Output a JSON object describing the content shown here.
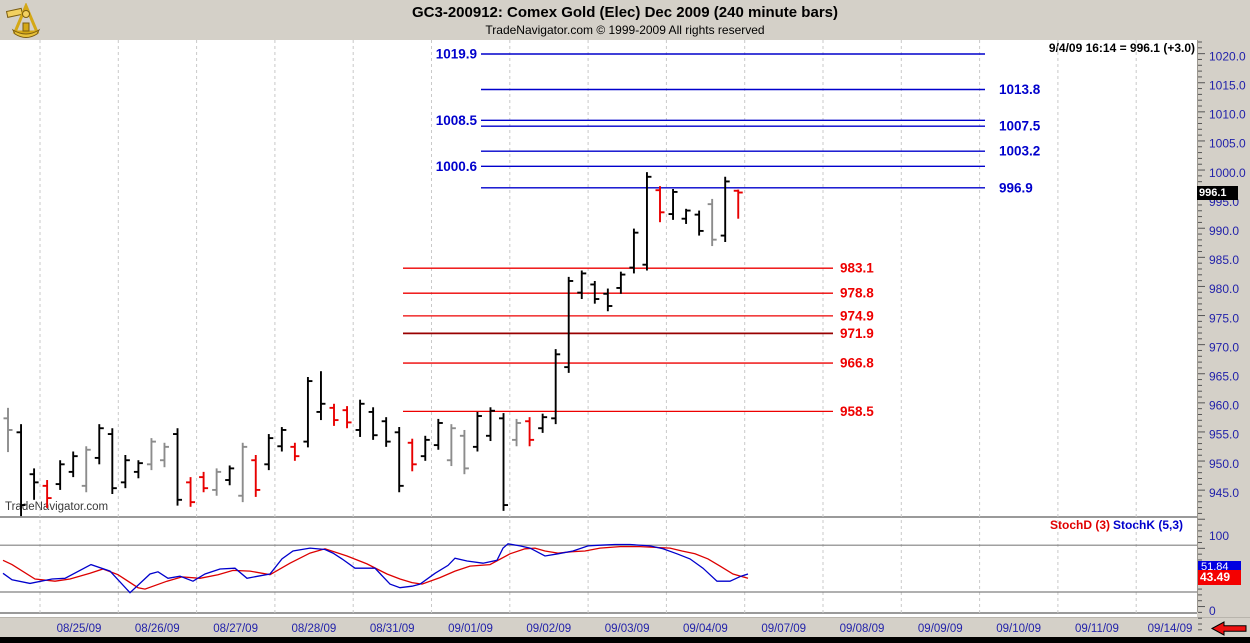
{
  "header": {
    "title": "GC3-200912:  Comex Gold (Elec) Dec 2009  (240 minute bars)",
    "subtitle": "TradeNavigator.com © 1999-2009 All rights reserved",
    "quote": "9/4/09 16:14 = 996.1 (+3.0)"
  },
  "watermark": "TradeNavigator.com",
  "last_price_label": "996.1",
  "colors": {
    "blue_level": "#0000cc",
    "red_level": "#ee0000",
    "dark_red_level": "#990000",
    "axis_text": "#2222aa",
    "bar_black": "#000000",
    "bar_gray": "#8c8c8c",
    "bar_red": "#e80000",
    "stoch_k": "#0000cc",
    "stoch_d": "#dd0000",
    "gridline": "#c9c9c9",
    "marker_bg": "#000000",
    "d_box_bg": "#f40000",
    "k_box_bg": "#0000e0"
  },
  "chart_data": {
    "type": "bar",
    "subtype": "ohlc-bars-with-stochastic",
    "symbol": "GC3-200912",
    "instrument": "Comex Gold (Elec) Dec 2009",
    "interval": "240 minute bars",
    "last_update": "9/4/09 16:14",
    "last_price": 996.1,
    "change": "+3.0",
    "price_axis_labels": [
      1020.0,
      1015.0,
      1010.0,
      1005.0,
      1000.0,
      995.0,
      990.0,
      985.0,
      980.0,
      975.0,
      970.0,
      965.0,
      960.0,
      955.0,
      950.0,
      945.0
    ],
    "ylim": [
      940.5,
      1022.0
    ],
    "dates": [
      "08/25/09",
      "08/26/09",
      "08/27/09",
      "08/28/09",
      "08/31/09",
      "09/01/09",
      "09/02/09",
      "09/03/09",
      "09/04/09",
      "09/07/09",
      "09/08/09",
      "09/09/09",
      "09/10/09",
      "09/11/09",
      "09/14/09"
    ],
    "resistance_levels_blue": [
      {
        "price": 1019.9,
        "label": "1019.9",
        "label_side": "left"
      },
      {
        "price": 1013.8,
        "label": "1013.8",
        "label_side": "right"
      },
      {
        "price": 1008.5,
        "label": "1008.5",
        "label_side": "left"
      },
      {
        "price": 1007.5,
        "label": "1007.5",
        "label_side": "right"
      },
      {
        "price": 1003.2,
        "label": "1003.2",
        "label_side": "right"
      },
      {
        "price": 1000.6,
        "label": "1000.6",
        "label_side": "left"
      },
      {
        "price": 996.9,
        "label": "996.9",
        "label_side": "right"
      }
    ],
    "support_levels_red": [
      {
        "price": 983.1,
        "label": "983.1",
        "dark": false
      },
      {
        "price": 978.8,
        "label": "978.8",
        "dark": false
      },
      {
        "price": 974.9,
        "label": "974.9",
        "dark": false
      },
      {
        "price": 971.9,
        "label": "971.9",
        "dark": true
      },
      {
        "price": 966.8,
        "label": "966.8",
        "dark": false
      },
      {
        "price": 958.5,
        "label": "958.5",
        "dark": false
      }
    ],
    "bars": [
      {
        "o": 957.3,
        "h": 959.1,
        "l": 951.5,
        "c": 955.3,
        "col": "g"
      },
      {
        "o": 954.9,
        "h": 956.3,
        "l": 940.5,
        "c": 942.4,
        "col": "k"
      },
      {
        "o": 947.7,
        "h": 948.7,
        "l": 943.3,
        "c": 946.3,
        "col": "k"
      },
      {
        "o": 945.7,
        "h": 946.7,
        "l": 941.9,
        "c": 943.6,
        "col": "r"
      },
      {
        "o": 946.0,
        "h": 950.1,
        "l": 945.0,
        "c": 949.4,
        "col": "k"
      },
      {
        "o": 948.1,
        "h": 951.6,
        "l": 947.2,
        "c": 950.8,
        "col": "k"
      },
      {
        "o": 945.7,
        "h": 952.5,
        "l": 944.6,
        "c": 951.9,
        "col": "g"
      },
      {
        "o": 950.5,
        "h": 956.3,
        "l": 949.4,
        "c": 955.6,
        "col": "k"
      },
      {
        "o": 954.6,
        "h": 955.6,
        "l": 944.3,
        "c": 945.3,
        "col": "k"
      },
      {
        "o": 946.3,
        "h": 951.0,
        "l": 945.3,
        "c": 950.1,
        "col": "k"
      },
      {
        "o": 948.1,
        "h": 950.1,
        "l": 947.0,
        "c": 949.6,
        "col": "k"
      },
      {
        "o": 949.4,
        "h": 953.9,
        "l": 948.4,
        "c": 953.3,
        "col": "g"
      },
      {
        "o": 950.1,
        "h": 953.1,
        "l": 948.9,
        "c": 952.4,
        "col": "g"
      },
      {
        "o": 954.6,
        "h": 955.6,
        "l": 942.3,
        "c": 943.3,
        "col": "k"
      },
      {
        "o": 946.3,
        "h": 947.2,
        "l": 942.1,
        "c": 942.9,
        "col": "r"
      },
      {
        "o": 947.2,
        "h": 948.1,
        "l": 944.6,
        "c": 945.3,
        "col": "r"
      },
      {
        "o": 945.0,
        "h": 948.7,
        "l": 944.0,
        "c": 948.1,
        "col": "g"
      },
      {
        "o": 946.7,
        "h": 949.2,
        "l": 945.8,
        "c": 948.7,
        "col": "k"
      },
      {
        "o": 944.0,
        "h": 953.1,
        "l": 942.9,
        "c": 952.4,
        "col": "g"
      },
      {
        "o": 950.1,
        "h": 951.0,
        "l": 943.8,
        "c": 945.0,
        "col": "r"
      },
      {
        "o": 949.4,
        "h": 954.6,
        "l": 948.4,
        "c": 953.9,
        "col": "k"
      },
      {
        "o": 952.5,
        "h": 955.8,
        "l": 951.6,
        "c": 955.3,
        "col": "k"
      },
      {
        "o": 952.4,
        "h": 953.1,
        "l": 950.0,
        "c": 950.8,
        "col": "r"
      },
      {
        "o": 953.3,
        "h": 964.4,
        "l": 952.3,
        "c": 963.7,
        "col": "k"
      },
      {
        "o": 958.4,
        "h": 965.4,
        "l": 957.0,
        "c": 959.8,
        "col": "k"
      },
      {
        "o": 959.1,
        "h": 959.8,
        "l": 956.0,
        "c": 957.0,
        "col": "r"
      },
      {
        "o": 958.7,
        "h": 959.4,
        "l": 955.6,
        "c": 956.6,
        "col": "r"
      },
      {
        "o": 955.3,
        "h": 960.5,
        "l": 954.1,
        "c": 959.8,
        "col": "k"
      },
      {
        "o": 958.4,
        "h": 959.2,
        "l": 953.6,
        "c": 954.4,
        "col": "k"
      },
      {
        "o": 956.8,
        "h": 957.5,
        "l": 952.4,
        "c": 953.3,
        "col": "k"
      },
      {
        "o": 954.9,
        "h": 955.8,
        "l": 944.6,
        "c": 945.7,
        "col": "k"
      },
      {
        "o": 953.1,
        "h": 953.8,
        "l": 948.2,
        "c": 949.4,
        "col": "r"
      },
      {
        "o": 950.8,
        "h": 954.3,
        "l": 950.0,
        "c": 953.6,
        "col": "k"
      },
      {
        "o": 952.7,
        "h": 957.2,
        "l": 951.9,
        "c": 956.5,
        "col": "k"
      },
      {
        "o": 950.1,
        "h": 956.3,
        "l": 949.1,
        "c": 955.6,
        "col": "g"
      },
      {
        "o": 954.3,
        "h": 955.3,
        "l": 947.7,
        "c": 948.7,
        "col": "g"
      },
      {
        "o": 952.4,
        "h": 958.4,
        "l": 951.6,
        "c": 957.7,
        "col": "k"
      },
      {
        "o": 954.3,
        "h": 959.2,
        "l": 953.4,
        "c": 958.6,
        "col": "k"
      },
      {
        "o": 957.3,
        "h": 958.2,
        "l": 941.4,
        "c": 942.4,
        "col": "k"
      },
      {
        "o": 953.6,
        "h": 957.2,
        "l": 952.5,
        "c": 956.5,
        "col": "g"
      },
      {
        "o": 956.8,
        "h": 957.5,
        "l": 952.5,
        "c": 953.6,
        "col": "r"
      },
      {
        "o": 955.6,
        "h": 958.1,
        "l": 954.8,
        "c": 957.5,
        "col": "k"
      },
      {
        "o": 957.3,
        "h": 969.2,
        "l": 956.3,
        "c": 968.3,
        "col": "k"
      },
      {
        "o": 966.1,
        "h": 981.6,
        "l": 965.1,
        "c": 980.9,
        "col": "k"
      },
      {
        "o": 978.9,
        "h": 982.7,
        "l": 977.8,
        "c": 982.2,
        "col": "k"
      },
      {
        "o": 980.3,
        "h": 980.9,
        "l": 977.0,
        "c": 977.8,
        "col": "k"
      },
      {
        "o": 978.7,
        "h": 979.6,
        "l": 975.7,
        "c": 976.6,
        "col": "k"
      },
      {
        "o": 979.7,
        "h": 982.5,
        "l": 978.7,
        "c": 982.0,
        "col": "k"
      },
      {
        "o": 983.2,
        "h": 989.9,
        "l": 982.2,
        "c": 989.2,
        "col": "k"
      },
      {
        "o": 983.7,
        "h": 999.6,
        "l": 982.7,
        "c": 998.8,
        "col": "k"
      },
      {
        "o": 996.5,
        "h": 997.2,
        "l": 991.0,
        "c": 992.7,
        "col": "r"
      },
      {
        "o": 992.4,
        "h": 996.7,
        "l": 991.4,
        "c": 996.2,
        "col": "k"
      },
      {
        "o": 991.6,
        "h": 993.3,
        "l": 990.7,
        "c": 993.0,
        "col": "k"
      },
      {
        "o": 992.3,
        "h": 993.0,
        "l": 988.7,
        "c": 989.5,
        "col": "k"
      },
      {
        "o": 994.1,
        "h": 995.0,
        "l": 986.9,
        "c": 988.0,
        "col": "g"
      },
      {
        "o": 988.7,
        "h": 998.8,
        "l": 987.6,
        "c": 998.0,
        "col": "k"
      },
      {
        "o": 996.4,
        "h": 996.6,
        "l": 991.6,
        "c": 996.1,
        "col": "r"
      }
    ],
    "stochastic": {
      "d_label": "StochD (3)",
      "k_label": "StochK (5,3)",
      "d_value_label": "43.49",
      "k_value_label": "51.84",
      "scale_top": "100",
      "scale_bottom": "0",
      "hlines": [
        90,
        25
      ],
      "k_points": [
        [
          3,
          51
        ],
        [
          12,
          42
        ],
        [
          30,
          37
        ],
        [
          52,
          43
        ],
        [
          65,
          44
        ],
        [
          91,
          63
        ],
        [
          110,
          54
        ],
        [
          130,
          24
        ],
        [
          150,
          50
        ],
        [
          158,
          53
        ],
        [
          168,
          44
        ],
        [
          180,
          47
        ],
        [
          193,
          40
        ],
        [
          205,
          50
        ],
        [
          220,
          57
        ],
        [
          235,
          58
        ],
        [
          247,
          44
        ],
        [
          258,
          47
        ],
        [
          270,
          50
        ],
        [
          282,
          71
        ],
        [
          293,
          82
        ],
        [
          310,
          86
        ],
        [
          325,
          84
        ],
        [
          333,
          79
        ],
        [
          342,
          71
        ],
        [
          355,
          58
        ],
        [
          375,
          58
        ],
        [
          390,
          36
        ],
        [
          400,
          31
        ],
        [
          412,
          33
        ],
        [
          420,
          36
        ],
        [
          435,
          51
        ],
        [
          448,
          62
        ],
        [
          455,
          72
        ],
        [
          467,
          68
        ],
        [
          483,
          65
        ],
        [
          497,
          69
        ],
        [
          503,
          86
        ],
        [
          508,
          92
        ],
        [
          520,
          89
        ],
        [
          530,
          86
        ],
        [
          545,
          75
        ],
        [
          558,
          78
        ],
        [
          573,
          82
        ],
        [
          588,
          89
        ],
        [
          600,
          90
        ],
        [
          615,
          91
        ],
        [
          630,
          91
        ],
        [
          650,
          89
        ],
        [
          663,
          85
        ],
        [
          677,
          78
        ],
        [
          690,
          71
        ],
        [
          703,
          58
        ],
        [
          717,
          40
        ],
        [
          730,
          40
        ],
        [
          741,
          47
        ],
        [
          748,
          50
        ]
      ],
      "d_points": [
        [
          3,
          69
        ],
        [
          12,
          63
        ],
        [
          35,
          43
        ],
        [
          55,
          40
        ],
        [
          70,
          43
        ],
        [
          90,
          51
        ],
        [
          103,
          57
        ],
        [
          118,
          49
        ],
        [
          138,
          31
        ],
        [
          145,
          29
        ],
        [
          167,
          40
        ],
        [
          182,
          46
        ],
        [
          200,
          44
        ],
        [
          218,
          49
        ],
        [
          233,
          55
        ],
        [
          250,
          54
        ],
        [
          270,
          49
        ],
        [
          290,
          65
        ],
        [
          310,
          79
        ],
        [
          325,
          85
        ],
        [
          347,
          75
        ],
        [
          367,
          64
        ],
        [
          387,
          50
        ],
        [
          400,
          43
        ],
        [
          412,
          38
        ],
        [
          422,
          36
        ],
        [
          440,
          45
        ],
        [
          455,
          54
        ],
        [
          470,
          61
        ],
        [
          490,
          63
        ],
        [
          510,
          78
        ],
        [
          525,
          85
        ],
        [
          535,
          86
        ],
        [
          545,
          82
        ],
        [
          558,
          79
        ],
        [
          572,
          81
        ],
        [
          585,
          82
        ],
        [
          600,
          86
        ],
        [
          620,
          88
        ],
        [
          640,
          88
        ],
        [
          655,
          87
        ],
        [
          670,
          86
        ],
        [
          682,
          82
        ],
        [
          695,
          78
        ],
        [
          708,
          71
        ],
        [
          720,
          61
        ],
        [
          733,
          50
        ],
        [
          743,
          46
        ],
        [
          748,
          44
        ]
      ]
    }
  }
}
